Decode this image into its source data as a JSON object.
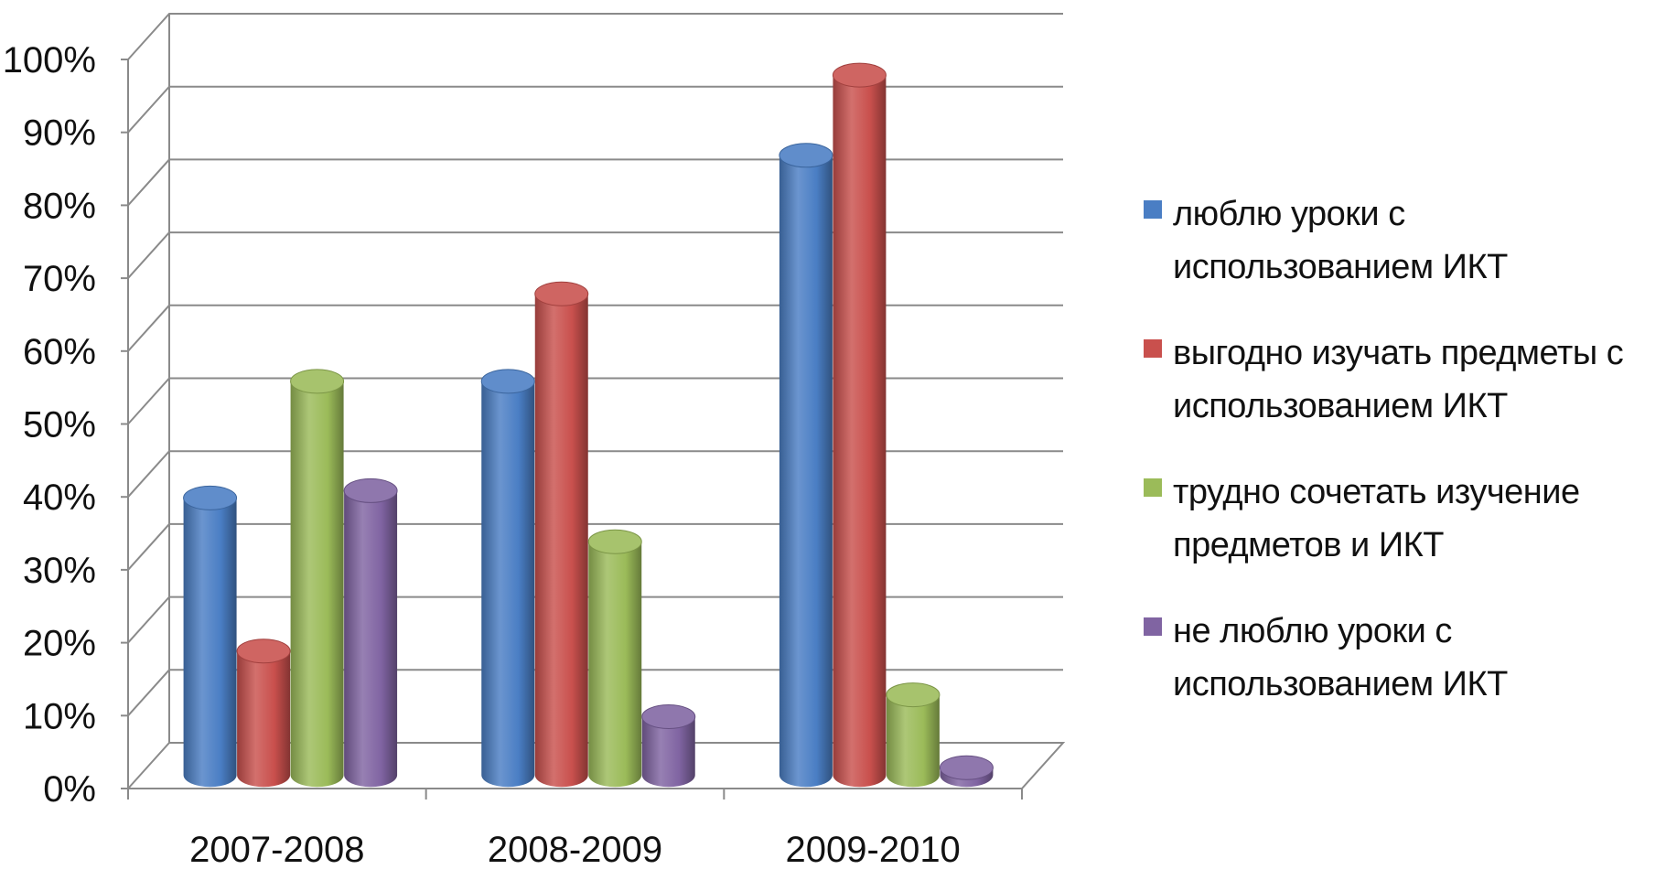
{
  "chart_data": {
    "type": "bar",
    "title": "",
    "xlabel": "",
    "ylabel": "",
    "categories": [
      "2007-2008",
      "2008-2009",
      "2009-2010"
    ],
    "yticks": [
      "0%",
      "10%",
      "20%",
      "30%",
      "40%",
      "50%",
      "60%",
      "70%",
      "80%",
      "90%",
      "100%"
    ],
    "ylim": [
      0,
      100
    ],
    "grid": true,
    "legend_position": "right",
    "series": [
      {
        "name": "люблю уроки с использованием ИКТ",
        "color": "#4a7ec4",
        "values": [
          38,
          54,
          85
        ]
      },
      {
        "name": "выгодно изучать предметы с использованием ИКТ",
        "color": "#c9504d",
        "values": [
          17,
          66,
          96
        ]
      },
      {
        "name": "трудно сочетать изучение предметов и ИКТ",
        "color": "#9bbb59",
        "values": [
          54,
          32,
          11
        ]
      },
      {
        "name": "не люблю уроки с использованием ИКТ",
        "color": "#8064a2",
        "values": [
          39,
          8,
          1
        ]
      }
    ]
  }
}
